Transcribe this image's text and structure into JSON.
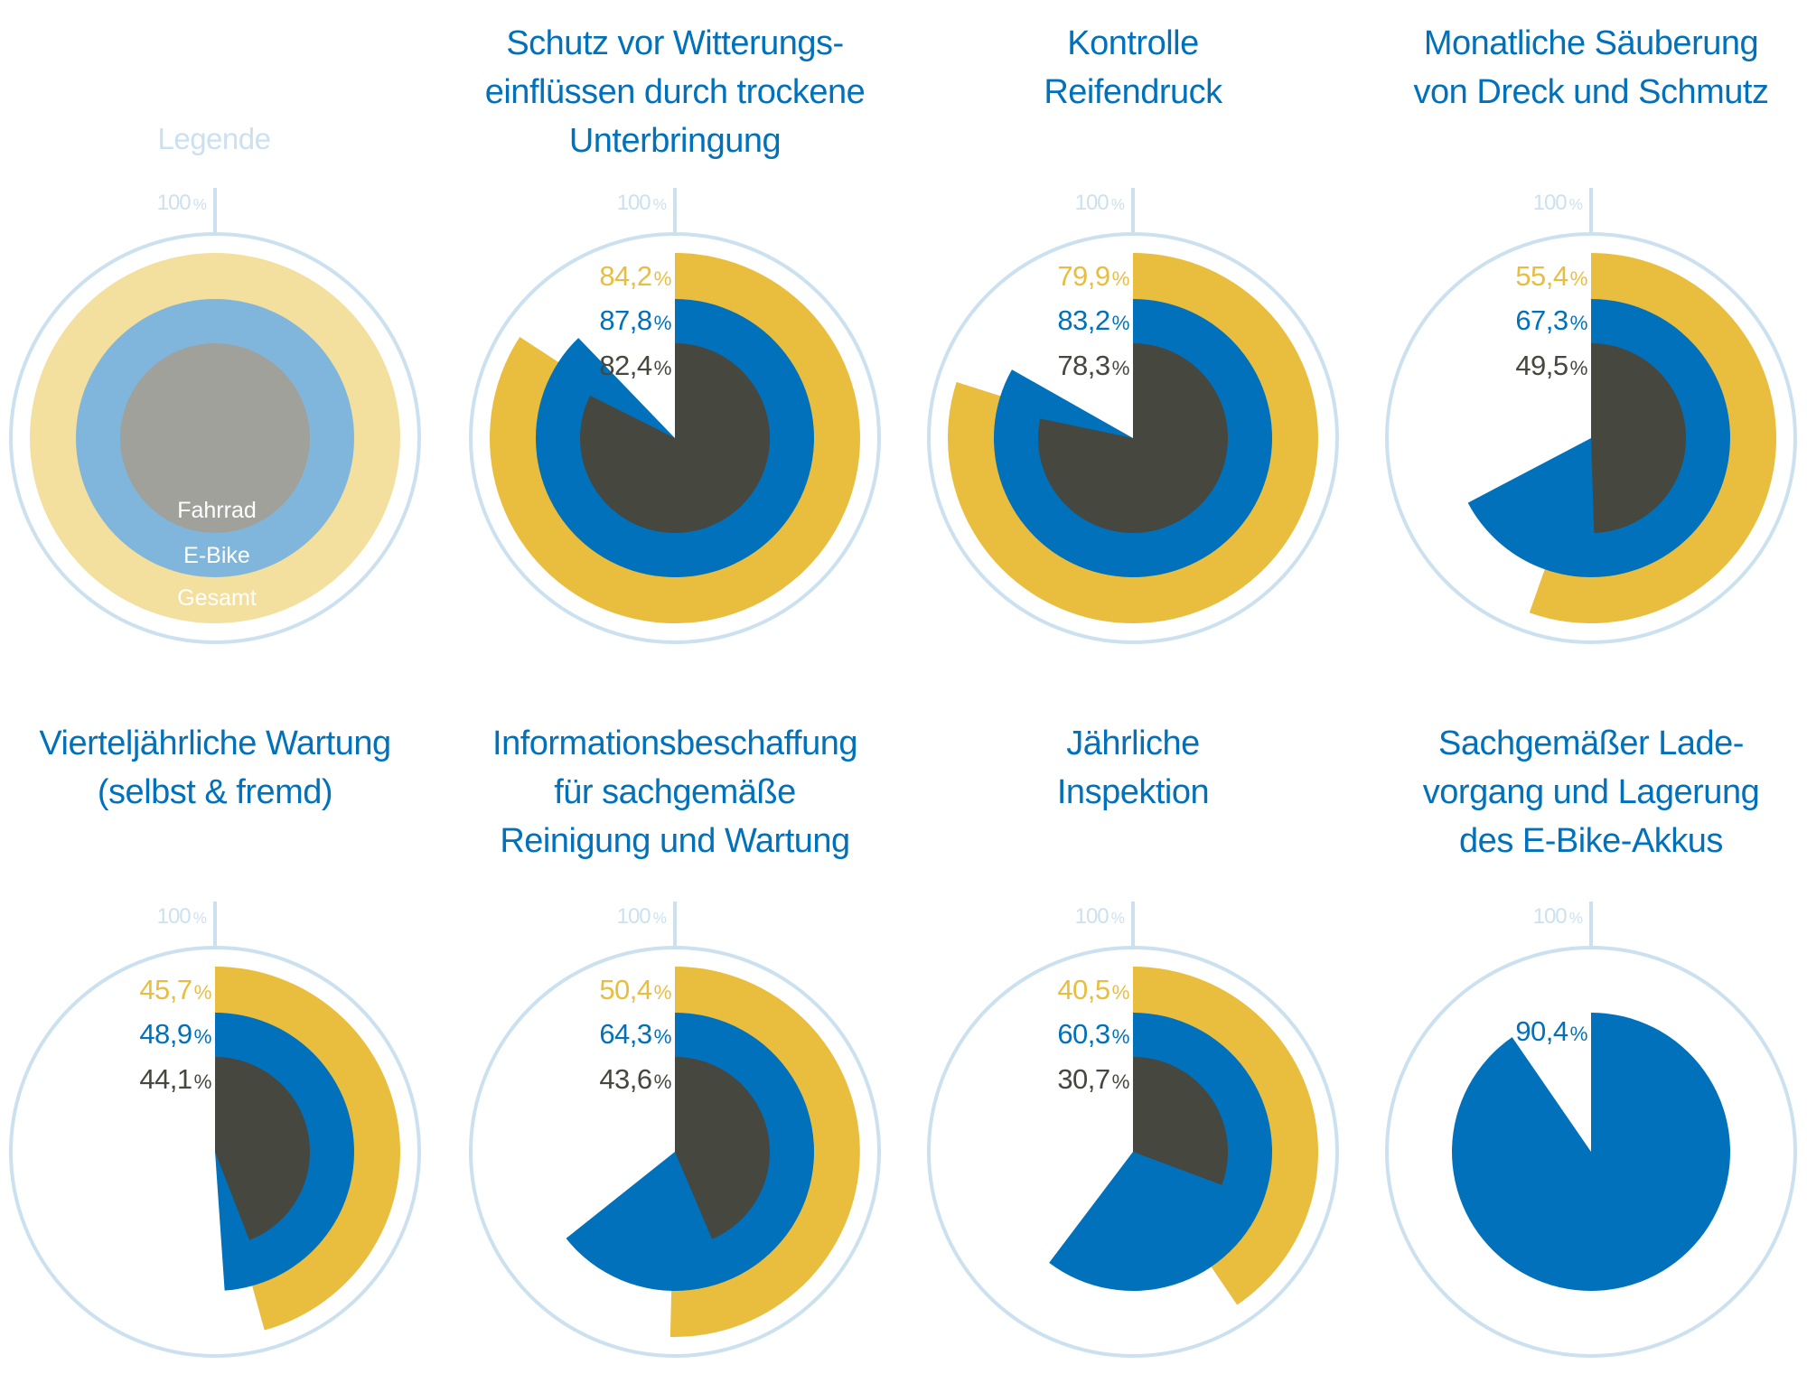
{
  "colors": {
    "gesamt": "#E9BE3F",
    "ebike": "#0071BA",
    "fahrrad": "#46473F",
    "outline": "#CCE1F0",
    "title": "#0071BA",
    "legend_gesamt": "#F3DF9E",
    "legend_ebike": "#80B6DC",
    "legend_fahrrad": "#A1A19C"
  },
  "legend": {
    "title": "Legende",
    "scale_label": "100",
    "percent_sign": "%",
    "labels": {
      "fahrrad": "Fahrrad",
      "ebike": "E-Bike",
      "gesamt": "Gesamt"
    }
  },
  "chart_data": {
    "type": "radial-bar",
    "scale_max_label": "100%",
    "series_names": [
      "Gesamt",
      "E-Bike",
      "Fahrrad"
    ],
    "unit": "%",
    "charts": [
      {
        "title_lines": [
          "Schutz vor Witterungs-",
          "einflüssen durch trockene",
          "Unterbringung"
        ],
        "values": {
          "gesamt": 84.2,
          "ebike": 87.8,
          "fahrrad": 82.4
        },
        "labels": {
          "gesamt": "84,2",
          "ebike": "87,8",
          "fahrrad": "82,4"
        }
      },
      {
        "title_lines": [
          "Kontrolle",
          "Reifendruck"
        ],
        "values": {
          "gesamt": 79.9,
          "ebike": 83.2,
          "fahrrad": 78.3
        },
        "labels": {
          "gesamt": "79,9",
          "ebike": "83,2",
          "fahrrad": "78,3"
        }
      },
      {
        "title_lines": [
          "Monatliche Säuberung",
          "von Dreck und Schmutz"
        ],
        "values": {
          "gesamt": 55.4,
          "ebike": 67.3,
          "fahrrad": 49.5
        },
        "labels": {
          "gesamt": "55,4",
          "ebike": "67,3",
          "fahrrad": "49,5"
        }
      },
      {
        "title_lines": [
          "Vierteljährliche Wartung",
          "(selbst & fremd)"
        ],
        "values": {
          "gesamt": 45.7,
          "ebike": 48.9,
          "fahrrad": 44.1
        },
        "labels": {
          "gesamt": "45,7",
          "ebike": "48,9",
          "fahrrad": "44,1"
        }
      },
      {
        "title_lines": [
          "Informationsbeschaffung",
          "für sachgemäße",
          "Reinigung und Wartung"
        ],
        "values": {
          "gesamt": 50.4,
          "ebike": 64.3,
          "fahrrad": 43.6
        },
        "labels": {
          "gesamt": "50,4",
          "ebike": "64,3",
          "fahrrad": "43,6"
        }
      },
      {
        "title_lines": [
          "Jährliche",
          "Inspektion"
        ],
        "values": {
          "gesamt": 40.5,
          "ebike": 60.3,
          "fahrrad": 30.7
        },
        "labels": {
          "gesamt": "40,5",
          "ebike": "60,3",
          "fahrrad": "30,7"
        }
      },
      {
        "title_lines": [
          "Sachgemäßer Lade-",
          "vorgang und Lagerung",
          "des E-Bike-Akkus"
        ],
        "values": {
          "ebike": 90.4
        },
        "labels": {
          "ebike": "90,4"
        }
      }
    ]
  }
}
